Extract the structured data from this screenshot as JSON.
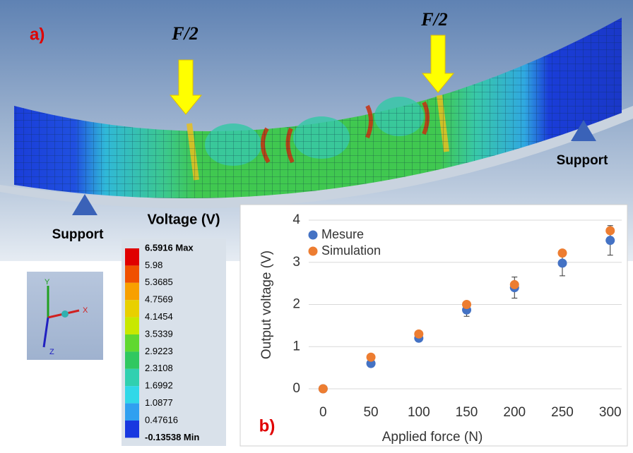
{
  "panel_a": {
    "label": "a)",
    "forces": [
      "F/2",
      "F/2"
    ],
    "supports": [
      "Support",
      "Support"
    ],
    "triad": [
      "Y",
      "X",
      "Z"
    ]
  },
  "colorbar": {
    "title": "Voltage (V)",
    "labels": [
      "6.5916 Max",
      "5.98",
      "5.3685",
      "4.7569",
      "4.1454",
      "3.5339",
      "2.9223",
      "2.3108",
      "1.6992",
      "1.0877",
      "0.47616",
      "-0.13538 Min"
    ]
  },
  "chart_data": {
    "type": "scatter",
    "panel_label": "b)",
    "x_label": "Applied force (N)",
    "y_label": "Output voltage (V)",
    "x": [
      0,
      50,
      100,
      150,
      200,
      250,
      300
    ],
    "series": [
      {
        "name": "Mesure",
        "color": "#4472c4",
        "values": [
          0,
          0.6,
          1.2,
          1.87,
          2.4,
          2.98,
          3.52
        ],
        "errors": [
          0,
          0.05,
          0.07,
          0.15,
          0.25,
          0.3,
          0.35
        ]
      },
      {
        "name": "Simulation",
        "color": "#ed7d31",
        "values": [
          0,
          0.75,
          1.3,
          2.0,
          2.47,
          3.22,
          3.75
        ]
      }
    ],
    "xlim": [
      -15,
      312
    ],
    "ylim": [
      0,
      4
    ],
    "xticks": [
      0,
      50,
      100,
      150,
      200,
      250,
      300
    ],
    "yticks": [
      0,
      1,
      2,
      3,
      4
    ],
    "grid": true,
    "legend": "upper left"
  }
}
